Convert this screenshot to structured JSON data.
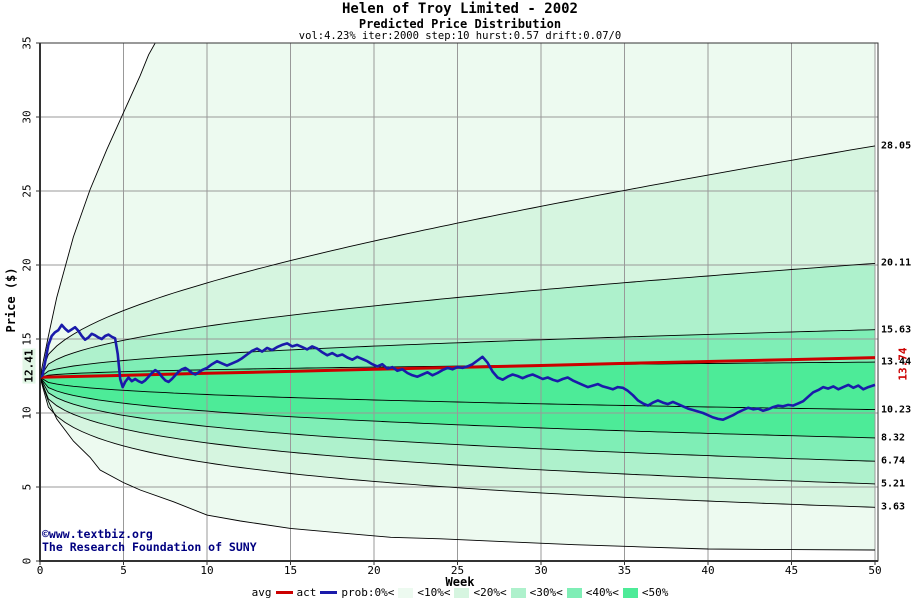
{
  "title": {
    "line1": "Helen of Troy Limited - 2002",
    "line2": "Predicted Price Distribution",
    "line3": "vol:4.23% iter:2000 step:10 hurst:0.57 drift:0.07/0"
  },
  "axes": {
    "x_label": "Week",
    "y_label": "Price ($)",
    "x_ticks": [
      "0",
      "5",
      "10",
      "15",
      "20",
      "25",
      "30",
      "35",
      "40",
      "45",
      "50"
    ],
    "y_ticks": [
      "0",
      "5",
      "10",
      "15",
      "20",
      "25",
      "30",
      "35"
    ]
  },
  "annotations": {
    "start_price_label": "12.41",
    "avg_final_label": "13.74",
    "right_labels": [
      "28.05",
      "20.11",
      "15.63",
      "13.44",
      "10.23",
      "8.32",
      "6.74",
      "5.21",
      "3.63"
    ],
    "watermark_line1": "©www.textbiz.org",
    "watermark_line2": "The Research Foundation of SUNY"
  },
  "legend": {
    "avg_label": "avg",
    "act_label": "act",
    "prob_labels": [
      "prob:0%<",
      "<10%<",
      "<20%<",
      "<30%<",
      "<40%<",
      "<50%"
    ]
  },
  "colors": {
    "avg": "#cc0000",
    "act": "#1a1aaa",
    "bands": [
      "#edfaf0",
      "#d6f5e0",
      "#aef1cc",
      "#7feeb6",
      "#4deb98"
    ],
    "grid": "#999999",
    "curve": "#000000",
    "frame": "#333333",
    "watermark": "#000080"
  },
  "chart_data": {
    "type": "line",
    "title": "Helen of Troy Limited - 2002 — Predicted Price Distribution",
    "xlabel": "Week",
    "ylabel": "Price ($)",
    "xlim": [
      0,
      50
    ],
    "ylim": [
      0,
      35
    ],
    "grid": true,
    "start_price": 12.41,
    "weeks": 50,
    "fan": {
      "shape_exponent": 0.42,
      "upper_quantile_ends": [
        28.05,
        20.11,
        15.63,
        13.44
      ],
      "median_end": 10.23,
      "lower_quantile_ends": [
        8.32,
        6.74,
        5.21,
        3.63
      ],
      "envelope_upper": [
        [
          0,
          12.41
        ],
        [
          0.5,
          15.2
        ],
        [
          1,
          17.8
        ],
        [
          2,
          21.9
        ],
        [
          3,
          25.1
        ],
        [
          4,
          27.8
        ],
        [
          5,
          30.3
        ],
        [
          6,
          32.8
        ],
        [
          6.5,
          34.2
        ],
        [
          7.2,
          35.6
        ]
      ],
      "envelope_lower": [
        [
          0,
          12.41
        ],
        [
          0.5,
          10.8
        ],
        [
          1,
          9.6
        ],
        [
          2,
          8.1
        ],
        [
          3,
          7.0
        ],
        [
          3.6,
          6.15
        ],
        [
          5,
          5.3
        ],
        [
          6,
          4.8
        ],
        [
          8,
          4.0
        ],
        [
          10,
          3.1
        ],
        [
          12,
          2.7
        ],
        [
          15,
          2.2
        ],
        [
          18,
          1.9
        ],
        [
          21,
          1.6
        ],
        [
          24,
          1.5
        ],
        [
          28,
          1.3
        ],
        [
          32,
          1.1
        ],
        [
          36,
          0.95
        ],
        [
          40,
          0.81
        ],
        [
          45,
          0.77
        ],
        [
          50,
          0.74
        ]
      ]
    },
    "series": [
      {
        "name": "avg",
        "points": [
          [
            0,
            12.41
          ],
          [
            5,
            12.54
          ],
          [
            10,
            12.68
          ],
          [
            15,
            12.81
          ],
          [
            20,
            12.95
          ],
          [
            25,
            13.08
          ],
          [
            30,
            13.21
          ],
          [
            35,
            13.35
          ],
          [
            40,
            13.48
          ],
          [
            45,
            13.61
          ],
          [
            50,
            13.74
          ]
        ]
      },
      {
        "name": "act",
        "points": [
          [
            0,
            12.41
          ],
          [
            0.15,
            12.55
          ],
          [
            0.3,
            13.4
          ],
          [
            0.5,
            14.6
          ],
          [
            0.7,
            15.2
          ],
          [
            0.9,
            15.45
          ],
          [
            1.1,
            15.6
          ],
          [
            1.3,
            15.95
          ],
          [
            1.5,
            15.7
          ],
          [
            1.7,
            15.5
          ],
          [
            1.9,
            15.65
          ],
          [
            2.1,
            15.8
          ],
          [
            2.3,
            15.55
          ],
          [
            2.5,
            15.2
          ],
          [
            2.7,
            14.95
          ],
          [
            2.9,
            15.1
          ],
          [
            3.1,
            15.35
          ],
          [
            3.3,
            15.25
          ],
          [
            3.5,
            15.1
          ],
          [
            3.7,
            15.0
          ],
          [
            3.9,
            15.2
          ],
          [
            4.1,
            15.3
          ],
          [
            4.3,
            15.15
          ],
          [
            4.5,
            15.05
          ],
          [
            4.65,
            14.0
          ],
          [
            4.8,
            12.3
          ],
          [
            4.95,
            11.75
          ],
          [
            5.1,
            12.1
          ],
          [
            5.3,
            12.4
          ],
          [
            5.5,
            12.15
          ],
          [
            5.7,
            12.3
          ],
          [
            5.9,
            12.15
          ],
          [
            6.1,
            12.05
          ],
          [
            6.3,
            12.2
          ],
          [
            6.5,
            12.45
          ],
          [
            6.7,
            12.7
          ],
          [
            6.9,
            12.9
          ],
          [
            7.1,
            12.75
          ],
          [
            7.3,
            12.45
          ],
          [
            7.5,
            12.2
          ],
          [
            7.7,
            12.1
          ],
          [
            7.9,
            12.3
          ],
          [
            8.1,
            12.55
          ],
          [
            8.3,
            12.8
          ],
          [
            8.5,
            12.95
          ],
          [
            8.7,
            13.05
          ],
          [
            8.9,
            12.9
          ],
          [
            9.1,
            12.7
          ],
          [
            9.3,
            12.6
          ],
          [
            9.5,
            12.75
          ],
          [
            9.7,
            12.9
          ],
          [
            10,
            13.05
          ],
          [
            10.3,
            13.3
          ],
          [
            10.6,
            13.5
          ],
          [
            10.9,
            13.35
          ],
          [
            11.2,
            13.2
          ],
          [
            11.5,
            13.35
          ],
          [
            11.8,
            13.5
          ],
          [
            12.1,
            13.7
          ],
          [
            12.4,
            13.95
          ],
          [
            12.7,
            14.2
          ],
          [
            13,
            14.35
          ],
          [
            13.3,
            14.15
          ],
          [
            13.6,
            14.4
          ],
          [
            13.9,
            14.25
          ],
          [
            14.2,
            14.45
          ],
          [
            14.5,
            14.6
          ],
          [
            14.8,
            14.7
          ],
          [
            15.1,
            14.5
          ],
          [
            15.4,
            14.6
          ],
          [
            15.7,
            14.45
          ],
          [
            16,
            14.3
          ],
          [
            16.3,
            14.5
          ],
          [
            16.6,
            14.35
          ],
          [
            16.9,
            14.1
          ],
          [
            17.2,
            13.9
          ],
          [
            17.5,
            14.05
          ],
          [
            17.8,
            13.85
          ],
          [
            18.1,
            13.95
          ],
          [
            18.4,
            13.75
          ],
          [
            18.7,
            13.6
          ],
          [
            19,
            13.8
          ],
          [
            19.3,
            13.65
          ],
          [
            19.6,
            13.5
          ],
          [
            19.9,
            13.3
          ],
          [
            20.2,
            13.15
          ],
          [
            20.5,
            13.3
          ],
          [
            20.8,
            13.0
          ],
          [
            21.1,
            13.1
          ],
          [
            21.4,
            12.85
          ],
          [
            21.7,
            12.95
          ],
          [
            22,
            12.7
          ],
          [
            22.3,
            12.55
          ],
          [
            22.6,
            12.45
          ],
          [
            22.9,
            12.6
          ],
          [
            23.2,
            12.75
          ],
          [
            23.5,
            12.55
          ],
          [
            23.8,
            12.7
          ],
          [
            24.1,
            12.9
          ],
          [
            24.4,
            13.05
          ],
          [
            24.7,
            12.95
          ],
          [
            25,
            13.1
          ],
          [
            25.3,
            13.05
          ],
          [
            25.6,
            13.15
          ],
          [
            25.9,
            13.3
          ],
          [
            26.2,
            13.55
          ],
          [
            26.5,
            13.8
          ],
          [
            26.8,
            13.4
          ],
          [
            27.1,
            12.8
          ],
          [
            27.4,
            12.4
          ],
          [
            27.7,
            12.25
          ],
          [
            28,
            12.45
          ],
          [
            28.3,
            12.6
          ],
          [
            28.6,
            12.5
          ],
          [
            28.9,
            12.35
          ],
          [
            29.2,
            12.5
          ],
          [
            29.5,
            12.6
          ],
          [
            29.8,
            12.45
          ],
          [
            30.1,
            12.3
          ],
          [
            30.4,
            12.4
          ],
          [
            30.7,
            12.25
          ],
          [
            31,
            12.15
          ],
          [
            31.3,
            12.3
          ],
          [
            31.6,
            12.4
          ],
          [
            31.9,
            12.2
          ],
          [
            32.2,
            12.05
          ],
          [
            32.5,
            11.9
          ],
          [
            32.8,
            11.75
          ],
          [
            33.1,
            11.85
          ],
          [
            33.4,
            11.95
          ],
          [
            33.7,
            11.8
          ],
          [
            34,
            11.7
          ],
          [
            34.3,
            11.6
          ],
          [
            34.6,
            11.75
          ],
          [
            34.9,
            11.7
          ],
          [
            35.2,
            11.5
          ],
          [
            35.5,
            11.2
          ],
          [
            35.8,
            10.85
          ],
          [
            36.1,
            10.65
          ],
          [
            36.4,
            10.5
          ],
          [
            36.7,
            10.7
          ],
          [
            37,
            10.85
          ],
          [
            37.3,
            10.7
          ],
          [
            37.6,
            10.6
          ],
          [
            37.9,
            10.75
          ],
          [
            38.2,
            10.6
          ],
          [
            38.5,
            10.45
          ],
          [
            38.8,
            10.3
          ],
          [
            39.1,
            10.2
          ],
          [
            39.4,
            10.1
          ],
          [
            39.7,
            10.0
          ],
          [
            40,
            9.85
          ],
          [
            40.3,
            9.7
          ],
          [
            40.6,
            9.6
          ],
          [
            40.9,
            9.55
          ],
          [
            41.2,
            9.7
          ],
          [
            41.5,
            9.85
          ],
          [
            41.8,
            10.05
          ],
          [
            42.1,
            10.2
          ],
          [
            42.4,
            10.35
          ],
          [
            42.7,
            10.25
          ],
          [
            43,
            10.3
          ],
          [
            43.3,
            10.15
          ],
          [
            43.6,
            10.25
          ],
          [
            43.9,
            10.4
          ],
          [
            44.2,
            10.5
          ],
          [
            44.5,
            10.45
          ],
          [
            44.8,
            10.55
          ],
          [
            45.1,
            10.5
          ],
          [
            45.4,
            10.65
          ],
          [
            45.7,
            10.8
          ],
          [
            46,
            11.1
          ],
          [
            46.3,
            11.4
          ],
          [
            46.6,
            11.55
          ],
          [
            46.9,
            11.75
          ],
          [
            47.2,
            11.65
          ],
          [
            47.5,
            11.8
          ],
          [
            47.8,
            11.6
          ],
          [
            48.1,
            11.75
          ],
          [
            48.4,
            11.9
          ],
          [
            48.7,
            11.7
          ],
          [
            49,
            11.85
          ],
          [
            49.3,
            11.6
          ],
          [
            49.6,
            11.75
          ],
          [
            50,
            11.9
          ]
        ]
      }
    ]
  }
}
